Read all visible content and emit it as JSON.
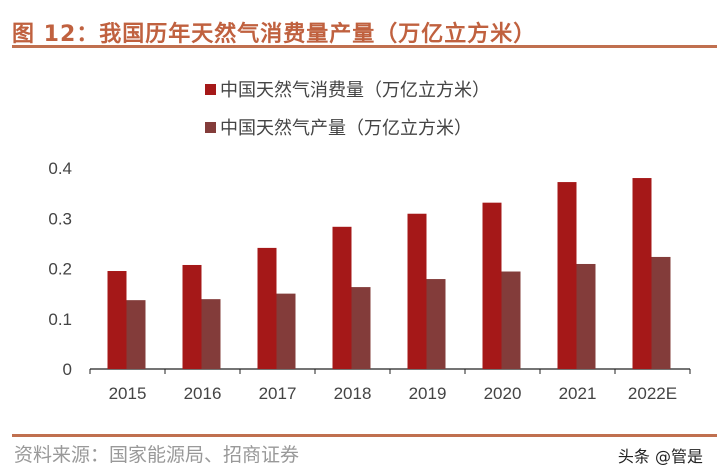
{
  "header": {
    "title": "图 12：我国历年天然气消费量产量（万亿立方米）"
  },
  "footer": {
    "source": "资料来源：国家能源局、招商证券",
    "watermark": "头条 @管是"
  },
  "chart_data": {
    "type": "bar",
    "title": "图 12：我国历年天然气消费量产量（万亿立方米）",
    "categories": [
      "2015",
      "2016",
      "2017",
      "2018",
      "2019",
      "2020",
      "2021",
      "2022E"
    ],
    "series": [
      {
        "name": "中国天然气消费量（万亿立方米）",
        "color": "#a51818",
        "values": [
          0.195,
          0.207,
          0.241,
          0.283,
          0.309,
          0.331,
          0.372,
          0.38
        ]
      },
      {
        "name": "中国天然气产量（万亿立方米）",
        "color": "#833c3a",
        "values": [
          0.137,
          0.139,
          0.15,
          0.163,
          0.179,
          0.194,
          0.209,
          0.223
        ]
      }
    ],
    "ylim": [
      0,
      0.4
    ],
    "yticks": [
      "0",
      "0.1",
      "0.2",
      "0.3",
      "0.4"
    ],
    "grid": false,
    "legend": "top-center"
  }
}
